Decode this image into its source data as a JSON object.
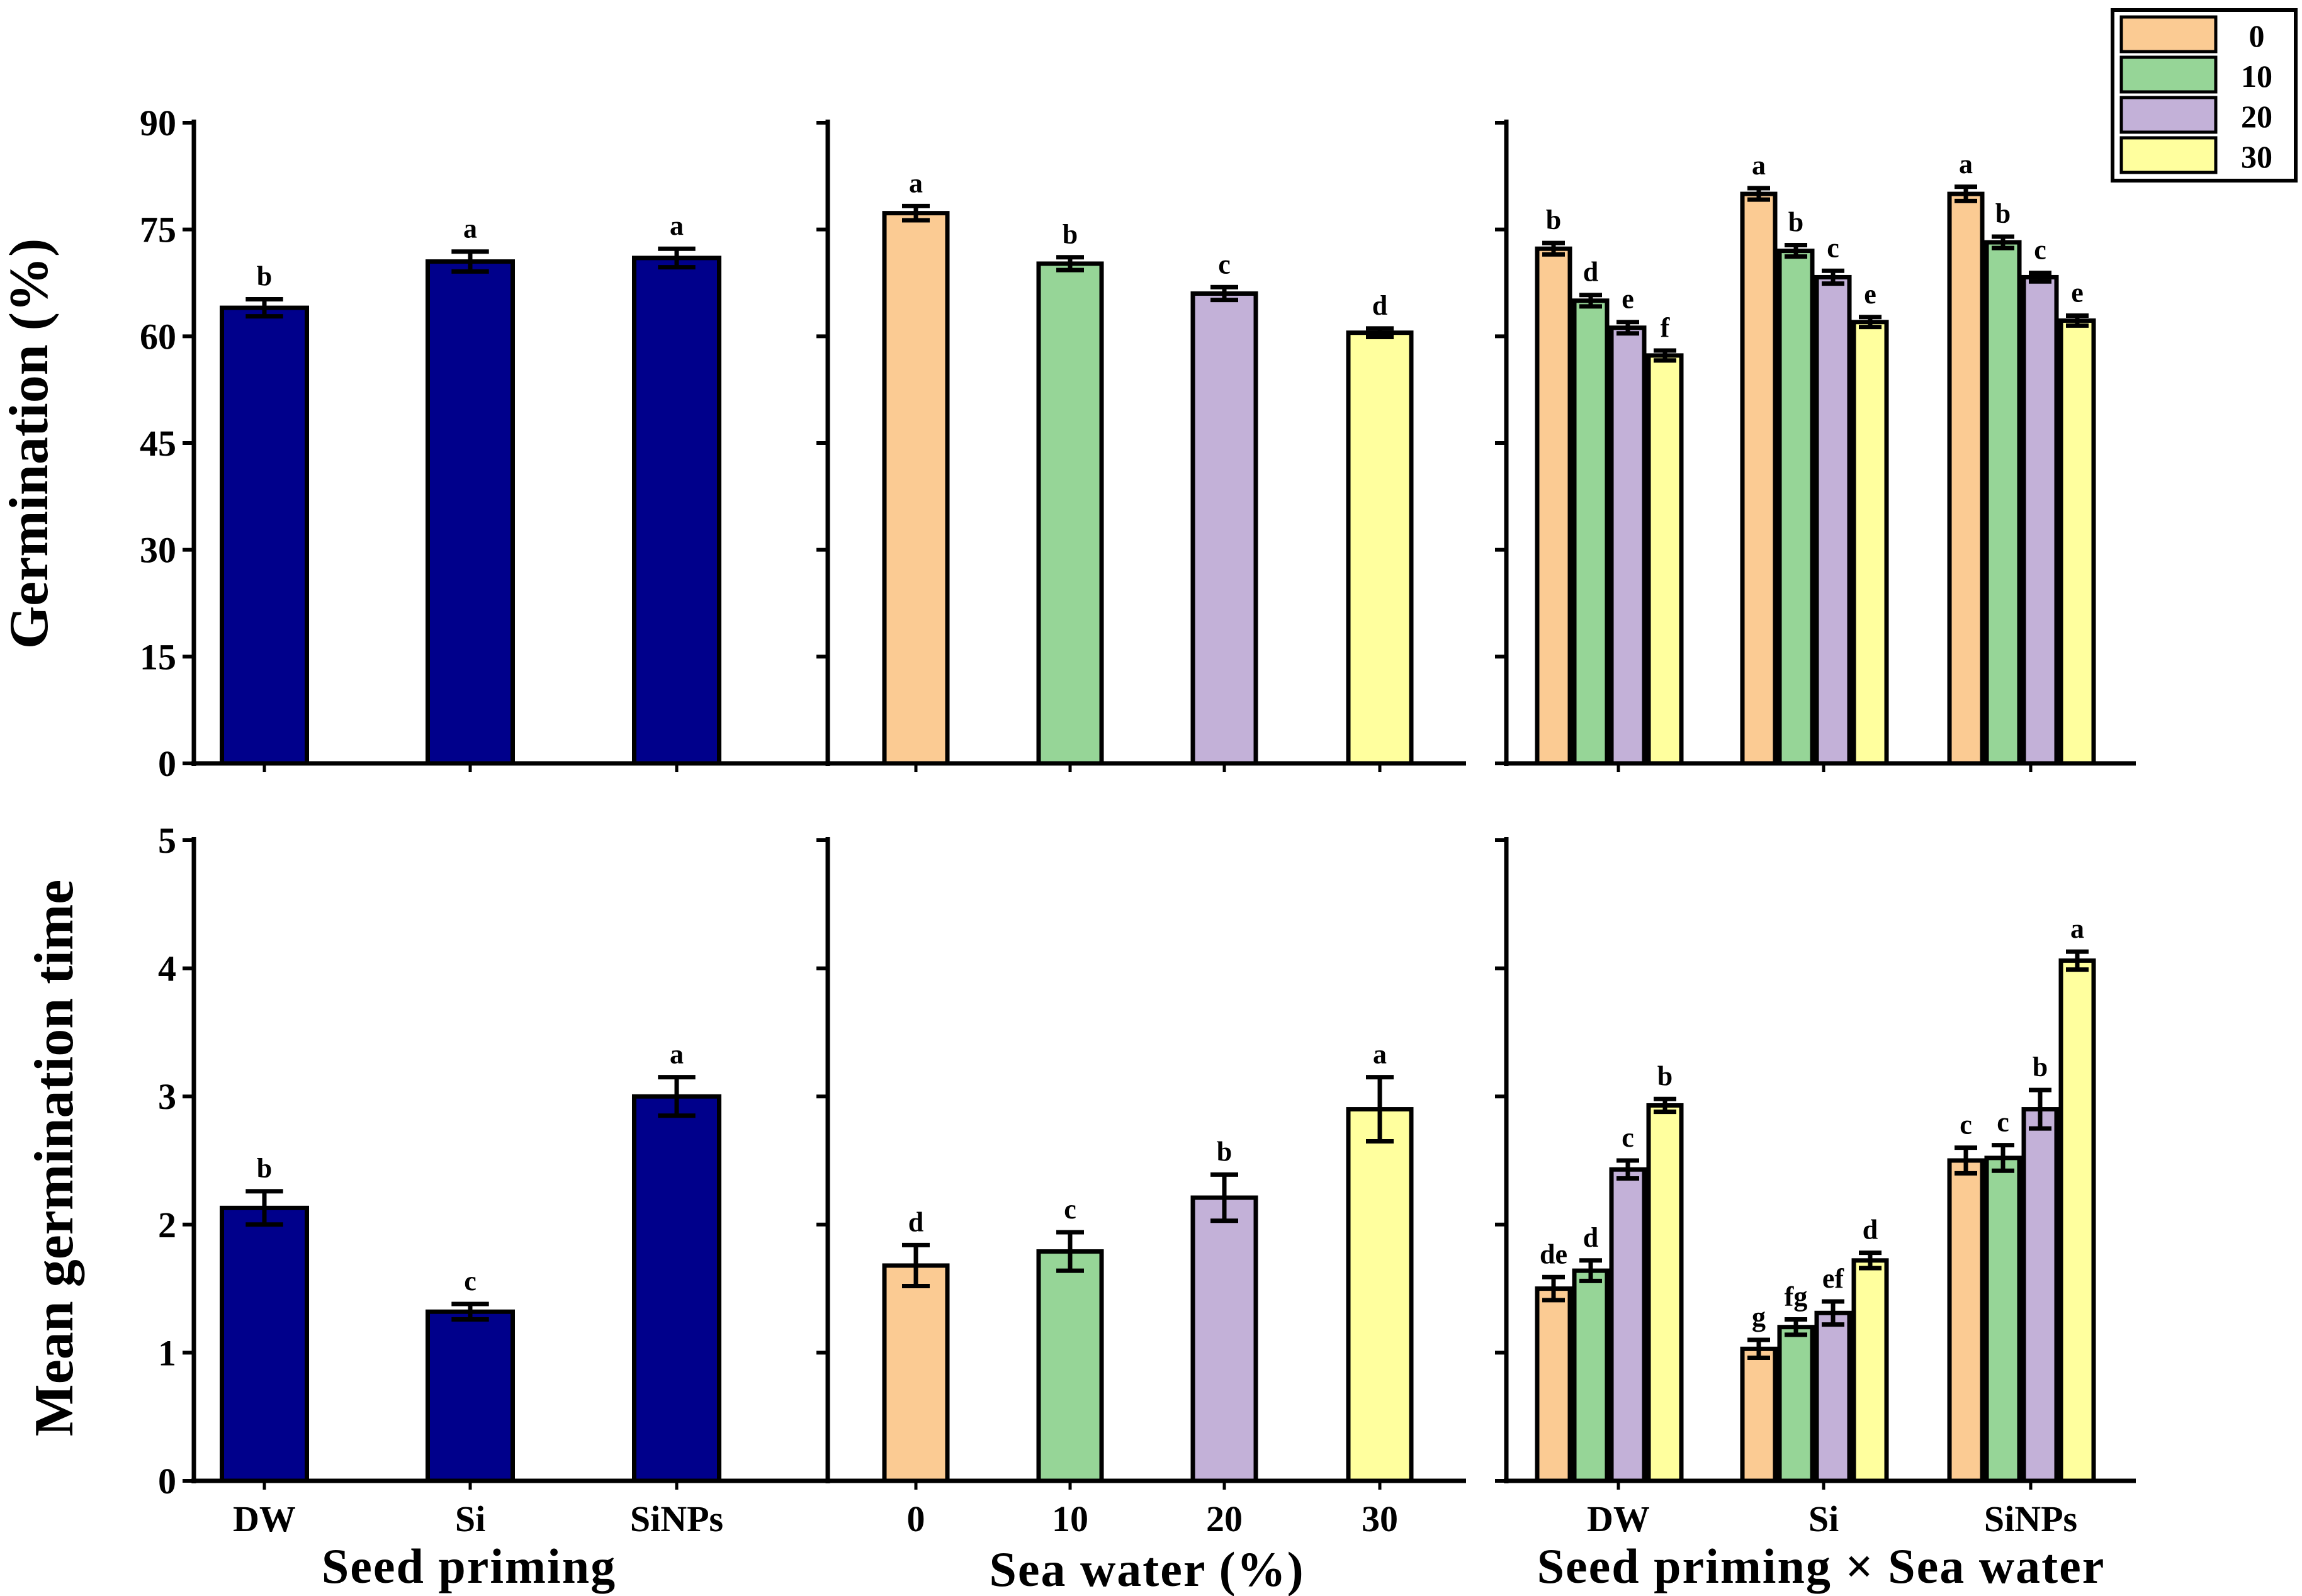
{
  "colors": {
    "priming": "#00008B",
    "sw0": "#FBCB93",
    "sw10": "#96D597",
    "sw20": "#C3B1D8",
    "sw30": "#FFFF9E",
    "axis": "#000000"
  },
  "legend": {
    "entries": [
      "0",
      "10",
      "20",
      "30"
    ]
  },
  "chart_data": [
    {
      "id": "germ_priming",
      "type": "bar",
      "title": "",
      "xlabel": "",
      "ylabel": "Germination (%)",
      "ylim": [
        0,
        90
      ],
      "yticks": [
        "0",
        "15",
        "30",
        "45",
        "60",
        "75",
        "90"
      ],
      "categories": [
        "DW",
        "Si",
        "SiNPs"
      ],
      "values": [
        64,
        70.5,
        71
      ],
      "errors": [
        1.2,
        1.4,
        1.3
      ],
      "letters": [
        "b",
        "a",
        "a"
      ]
    },
    {
      "id": "germ_seawater",
      "type": "bar",
      "title": "",
      "xlabel": "",
      "ylabel": "",
      "ylim": [
        0,
        90
      ],
      "categories": [
        "0",
        "10",
        "20",
        "30"
      ],
      "values": [
        77.3,
        70.2,
        66,
        60.5
      ],
      "errors": [
        1.0,
        0.9,
        0.9,
        0.6
      ],
      "letters": [
        "a",
        "b",
        "c",
        "d"
      ]
    },
    {
      "id": "germ_interaction",
      "type": "bar",
      "title": "",
      "xlabel": "",
      "ylabel": "",
      "ylim": [
        0,
        90
      ],
      "categories": [
        "DW",
        "Si",
        "SiNPs"
      ],
      "series": [
        {
          "name": "0",
          "values": [
            72.3,
            80,
            80
          ],
          "errors": [
            0.8,
            0.8,
            1.0
          ],
          "letters": [
            "b",
            "a",
            "a"
          ]
        },
        {
          "name": "10",
          "values": [
            65,
            72,
            73.2
          ],
          "errors": [
            0.8,
            0.8,
            0.8
          ],
          "letters": [
            "d",
            "b",
            "b"
          ]
        },
        {
          "name": "20",
          "values": [
            61.2,
            68.3,
            68.3
          ],
          "errors": [
            0.8,
            0.9,
            0.6
          ],
          "letters": [
            "e",
            "c",
            "c"
          ]
        },
        {
          "name": "30",
          "values": [
            57.3,
            62,
            62.2
          ],
          "errors": [
            0.7,
            0.7,
            0.7
          ],
          "letters": [
            "f",
            "e",
            "e"
          ]
        }
      ]
    },
    {
      "id": "mgt_priming",
      "type": "bar",
      "title": "",
      "xlabel": "Seed priming",
      "ylabel": "Mean germination time",
      "ylim": [
        0,
        5
      ],
      "yticks": [
        "0",
        "1",
        "2",
        "3",
        "4",
        "5"
      ],
      "categories": [
        "DW",
        "Si",
        "SiNPs"
      ],
      "values": [
        2.13,
        1.32,
        3.0
      ],
      "errors": [
        0.13,
        0.06,
        0.15
      ],
      "letters": [
        "b",
        "c",
        "a"
      ]
    },
    {
      "id": "mgt_seawater",
      "type": "bar",
      "title": "",
      "xlabel": "Sea water (%)",
      "ylabel": "",
      "ylim": [
        0,
        5
      ],
      "categories": [
        "0",
        "10",
        "20",
        "30"
      ],
      "values": [
        1.68,
        1.79,
        2.21,
        2.9
      ],
      "errors": [
        0.16,
        0.15,
        0.18,
        0.25
      ],
      "letters": [
        "d",
        "c",
        "b",
        "a"
      ]
    },
    {
      "id": "mgt_interaction",
      "type": "bar",
      "title": "",
      "xlabel": "Seed priming × Sea water",
      "ylabel": "",
      "ylim": [
        0,
        5
      ],
      "categories": [
        "DW",
        "Si",
        "SiNPs"
      ],
      "series": [
        {
          "name": "0",
          "values": [
            1.5,
            1.03,
            2.5
          ],
          "errors": [
            0.09,
            0.07,
            0.1
          ],
          "letters": [
            "de",
            "g",
            "c"
          ]
        },
        {
          "name": "10",
          "values": [
            1.64,
            1.2,
            2.52
          ],
          "errors": [
            0.08,
            0.06,
            0.1
          ],
          "letters": [
            "d",
            "fg",
            "c"
          ]
        },
        {
          "name": "20",
          "values": [
            2.43,
            1.31,
            2.9
          ],
          "errors": [
            0.07,
            0.09,
            0.15
          ],
          "letters": [
            "c",
            "ef",
            "b"
          ]
        },
        {
          "name": "30",
          "values": [
            2.93,
            1.72,
            4.06
          ],
          "errors": [
            0.05,
            0.06,
            0.07
          ],
          "letters": [
            "b",
            "d",
            "a"
          ]
        }
      ]
    }
  ]
}
